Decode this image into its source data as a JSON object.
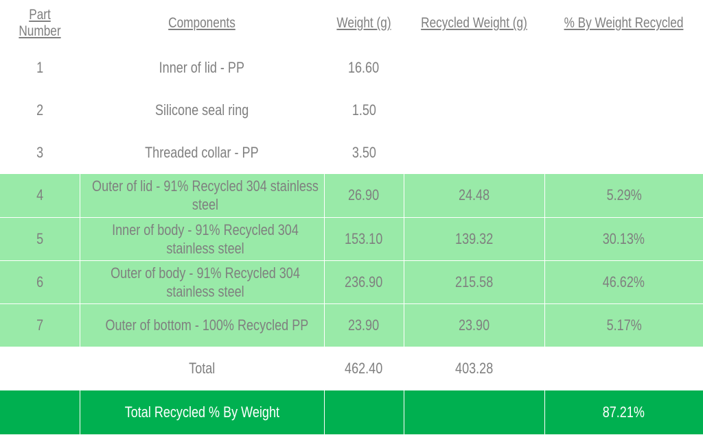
{
  "table": {
    "headers": [
      "Part Number",
      "Components",
      "Weight (g)",
      "Recycled Weight (g)",
      "% By Weight Recycled"
    ],
    "rows": [
      {
        "part": "1",
        "component": "Inner of lid - PP",
        "weight": "16.60",
        "recycled_weight": "",
        "percent": ""
      },
      {
        "part": "2",
        "component": "Silicone seal ring",
        "weight": "1.50",
        "recycled_weight": "",
        "percent": ""
      },
      {
        "part": "3",
        "component": "Threaded collar - PP",
        "weight": "3.50",
        "recycled_weight": "",
        "percent": ""
      },
      {
        "part": "4",
        "component": "Outer of lid - 91% Recycled 304 stainless steel",
        "weight": "26.90",
        "recycled_weight": "24.48",
        "percent": "5.29%"
      },
      {
        "part": "5",
        "component": "Inner of body - 91% Recycled 304 stainless steel",
        "weight": "153.10",
        "recycled_weight": "139.32",
        "percent": "30.13%"
      },
      {
        "part": "6",
        "component": "Outer of body - 91% Recycled 304 stainless steel",
        "weight": "236.90",
        "recycled_weight": "215.58",
        "percent": "46.62%"
      },
      {
        "part": "7",
        "component": "Outer of bottom - 100% Recycled PP",
        "weight": "23.90",
        "recycled_weight": "23.90",
        "percent": "5.17%"
      }
    ],
    "total": {
      "label": "Total",
      "weight": "462.40",
      "recycled_weight": "403.28"
    },
    "final": {
      "label": "Total Recycled % By Weight",
      "percent": "87.21%"
    }
  },
  "colors": {
    "text": "#7f7f7f",
    "highlight_row": "#99eaa8",
    "final_row": "#00b050"
  }
}
